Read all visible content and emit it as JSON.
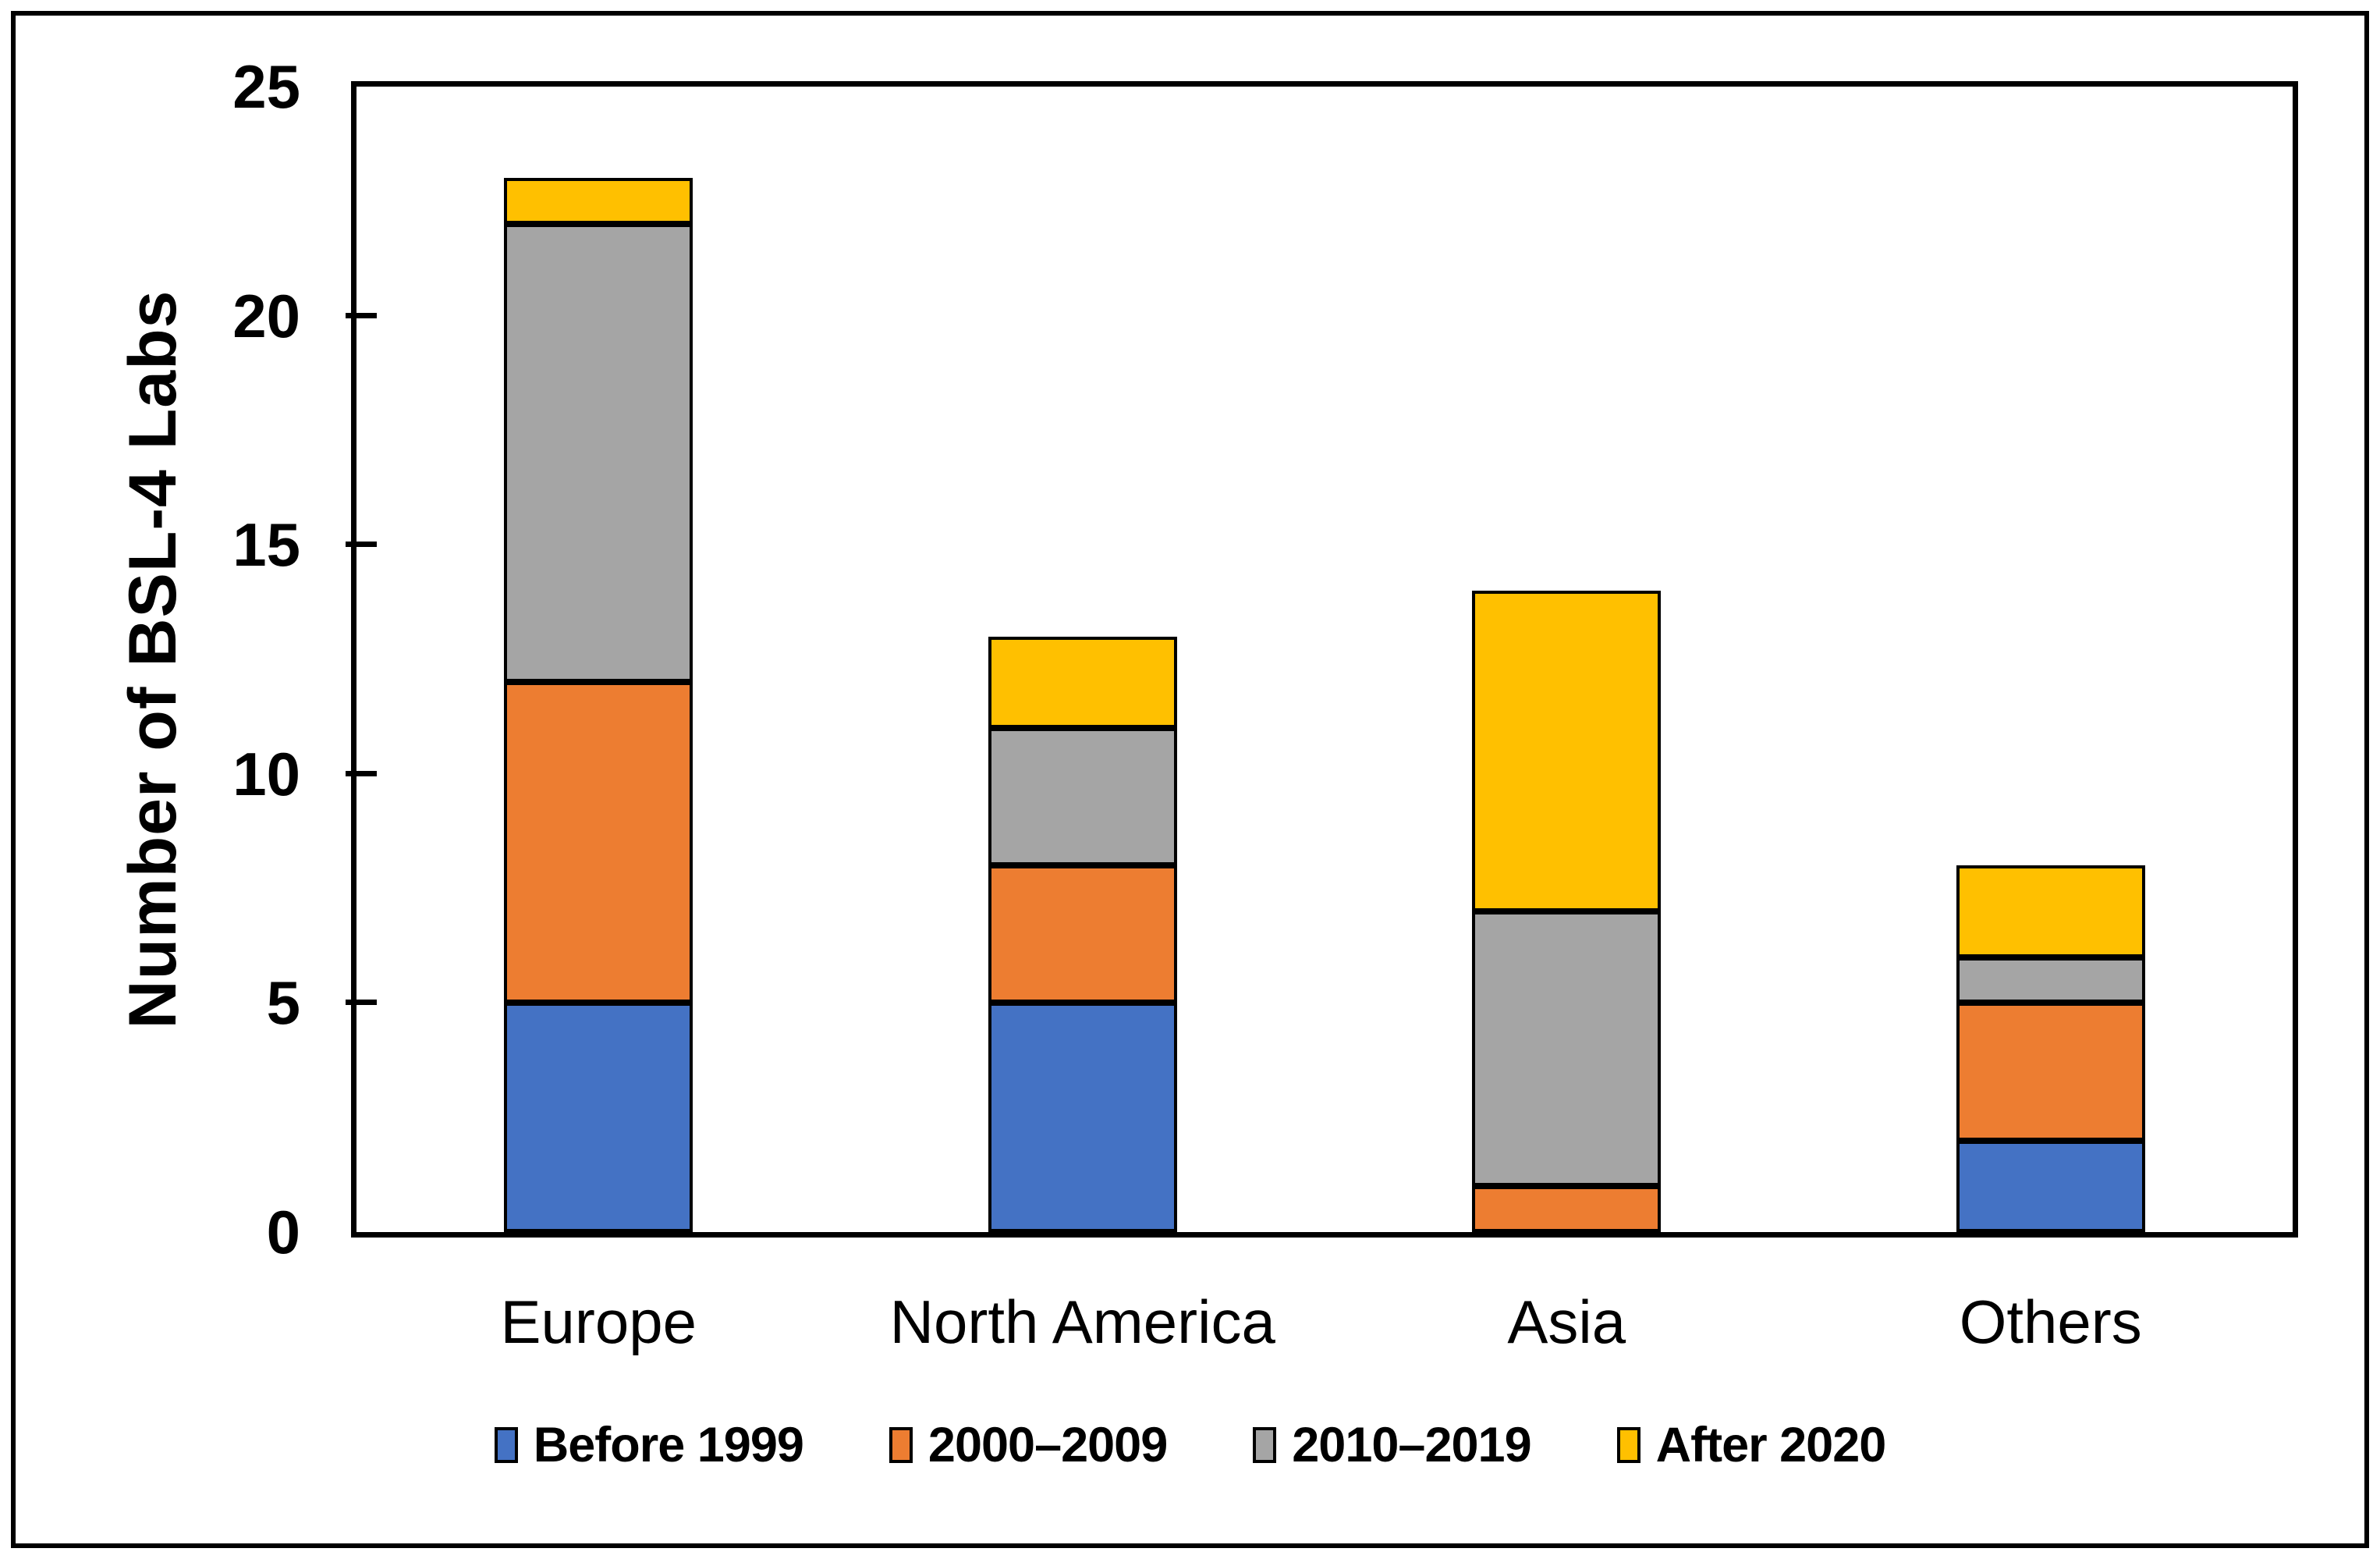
{
  "figure": {
    "background": "#FFFFFF",
    "frame_color": "#000000"
  },
  "chart_data": {
    "type": "bar",
    "stacked": true,
    "categories": [
      "Europe",
      "North America",
      "Asia",
      "Others"
    ],
    "series": [
      {
        "name": "Before 1999",
        "color": "#4472C4",
        "values": [
          5,
          5,
          0,
          2
        ]
      },
      {
        "name": "2000–2009",
        "color": "#ED7D31",
        "values": [
          7,
          3,
          1,
          3
        ]
      },
      {
        "name": "2010–2019",
        "color": "#A5A5A5",
        "values": [
          10,
          3,
          6,
          1
        ]
      },
      {
        "name": "After 2020",
        "color": "#FFC000",
        "values": [
          1,
          2,
          7,
          2
        ]
      }
    ],
    "title": "",
    "xlabel": "",
    "ylabel": "Number of BSL-4 Labs",
    "ylim": [
      0,
      25
    ],
    "yticks": [
      0,
      5,
      10,
      15,
      20,
      25
    ],
    "grid": false,
    "legend_position": "bottom",
    "bar_outline_color": "#000000"
  }
}
